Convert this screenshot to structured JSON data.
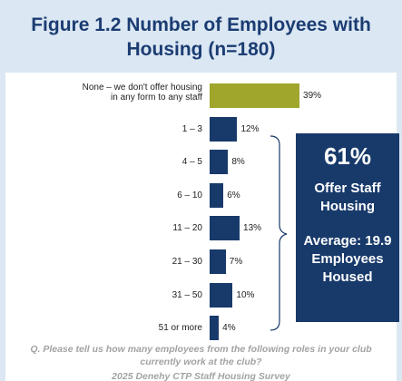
{
  "chart_data": {
    "type": "bar",
    "orientation": "horizontal",
    "title": "Figure 1.2 Number of Employees with Housing (n=180)",
    "categories": [
      "None – we don't offer housing in any form to any staff",
      "1 – 3",
      "4 – 5",
      "6 – 10",
      "11 – 20",
      "21 – 30",
      "31 – 50",
      "51 or more"
    ],
    "values": [
      39,
      12,
      8,
      6,
      13,
      7,
      10,
      4
    ],
    "value_labels": [
      "39%",
      "12%",
      "8%",
      "6%",
      "13%",
      "7%",
      "10%",
      "4%"
    ],
    "colors": [
      "#a0a62c",
      "#183a6b",
      "#183a6b",
      "#183a6b",
      "#183a6b",
      "#183a6b",
      "#183a6b",
      "#183a6b"
    ],
    "callout": {
      "headline": "61%",
      "line1": "Offer Staff Housing",
      "line2": "Average: 19.9 Employees Housed"
    },
    "question": "Q. Please tell us how many employees from the following roles in your club currently work at the club?",
    "source": "2025 Denehy CTP Staff Housing Survey"
  }
}
